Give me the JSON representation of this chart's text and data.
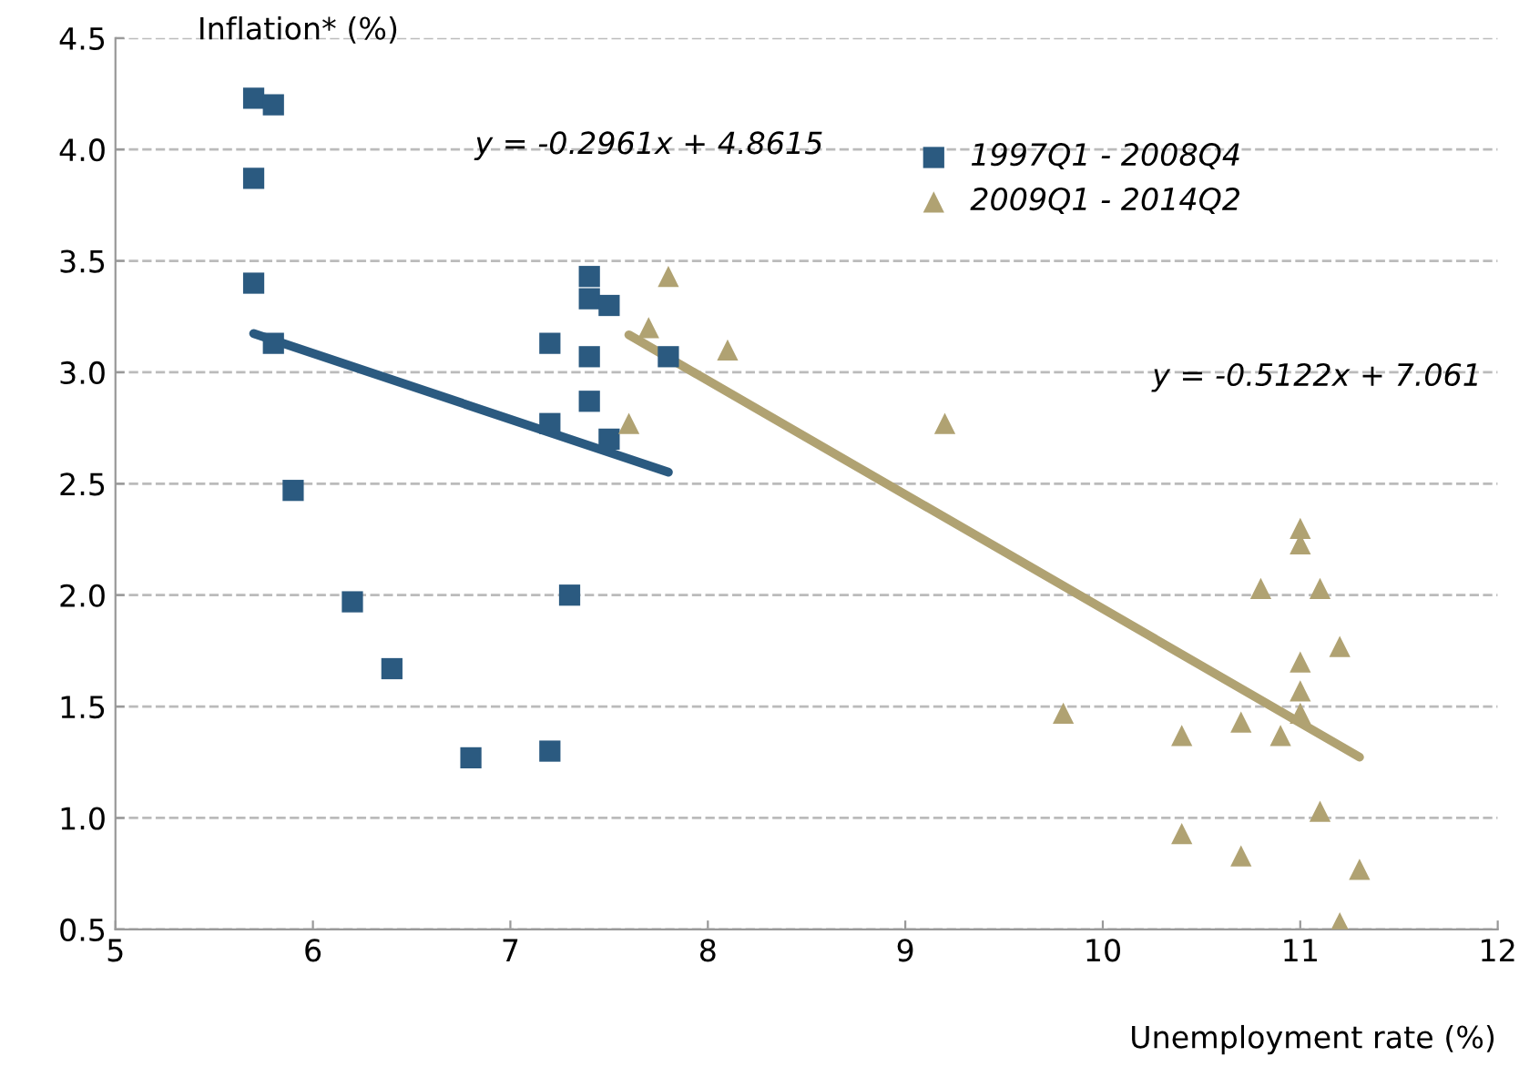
{
  "chart_data": {
    "type": "scatter",
    "xlabel": "Unemployment rate (%)",
    "ylabel": "Inflation* (%)",
    "xlim": [
      5,
      12
    ],
    "xticks": [
      5,
      6,
      7,
      8,
      9,
      10,
      11,
      12
    ],
    "ylim": [
      0.5,
      4.5
    ],
    "yticks": [
      0.5,
      {
        "value": 1,
        "label": "1.0"
      },
      1.5,
      {
        "value": 2,
        "label": "2.0"
      },
      2.5,
      {
        "value": 3,
        "label": "3.0"
      },
      3.5,
      {
        "value": 4,
        "label": "4.0"
      },
      4.5
    ],
    "grid": "y",
    "legend": "top",
    "annotations": [
      "y = -0.2961x + 4.8615",
      "y = -0.5122x + 7.061"
    ],
    "series": [
      {
        "name": "1997Q1 - 2008Q4",
        "color": "#2b5a80",
        "marker": "square",
        "x": [
          5.7,
          5.8,
          5.7,
          5.7,
          5.8,
          5.9,
          6.2,
          6.4,
          6.8,
          7.2,
          7.3,
          7.2,
          7.2,
          7.4,
          7.4,
          7.5,
          7.4,
          7.4,
          7.5,
          7.8
        ],
        "values": [
          4.23,
          4.2,
          3.87,
          3.4,
          3.13,
          2.47,
          1.97,
          1.67,
          1.27,
          1.3,
          2.0,
          3.13,
          2.77,
          3.43,
          3.33,
          3.3,
          3.07,
          2.87,
          2.7,
          3.07
        ]
      },
      {
        "name": "2009Q1 - 2014Q2",
        "color": "#b0a272",
        "marker": "triangle",
        "x": [
          7.6,
          7.7,
          7.8,
          8.1,
          9.2,
          9.8,
          10.4,
          10.4,
          10.7,
          10.7,
          10.8,
          10.9,
          11.0,
          11.0,
          11.0,
          11.0,
          11.0,
          11.1,
          11.1,
          11.2,
          11.2,
          11.3
        ],
        "values": [
          2.77,
          3.2,
          3.43,
          3.1,
          2.77,
          1.47,
          1.37,
          0.93,
          1.43,
          0.83,
          2.03,
          1.37,
          2.3,
          2.23,
          1.7,
          1.57,
          1.47,
          2.03,
          1.03,
          1.77,
          0.53,
          0.77
        ]
      },
      {
        "type": "line",
        "color": "#2b5a80",
        "x": [
          5.7,
          7.8
        ],
        "values": [
          3.174,
          2.552
        ]
      },
      {
        "type": "line",
        "color": "#b0a272",
        "x": [
          7.6,
          11.3
        ],
        "values": [
          3.168,
          1.273
        ]
      }
    ]
  }
}
